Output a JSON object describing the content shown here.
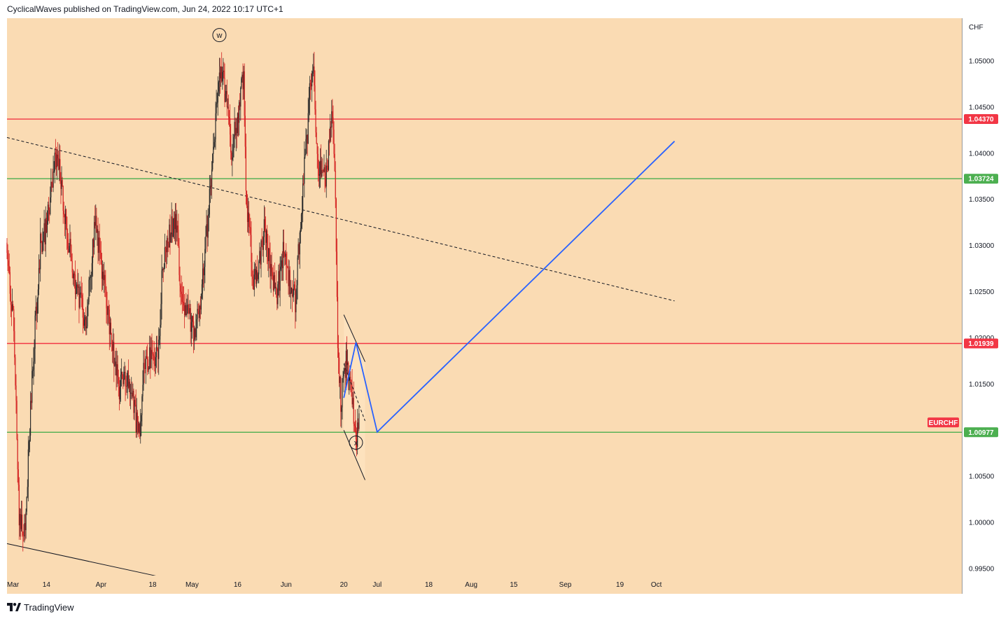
{
  "header": {
    "text": "CyclicalWaves published on TradingView.com, Jun 24, 2022 10:17 UTC+1"
  },
  "footer": {
    "brand": "TradingView"
  },
  "chart_data": {
    "type": "candlestick",
    "symbol": "EURCHF",
    "currency_label": "CHF",
    "ylim": [
      0.9935,
      1.0575
    ],
    "y_ticks": [
      "1.05000",
      "1.04500",
      "1.04000",
      "1.03500",
      "1.03000",
      "1.02500",
      "1.02000",
      "1.01500",
      "1.01000",
      "1.00500",
      "1.00000",
      "0.99500"
    ],
    "x_ticks": [
      "Mar",
      "14",
      "Apr",
      "18",
      "May",
      "16",
      "Jun",
      "20",
      "Jul",
      "18",
      "Aug",
      "15",
      "Sep",
      "19",
      "Oct"
    ],
    "colors": {
      "background": "#fadbb3",
      "up_candle": "#2b2b2b",
      "down_candle": "#d32020",
      "resistance_line": "#f23645",
      "support_line": "#4caf50",
      "projection_line": "#2962ff",
      "trend_line": "#131722",
      "tag_red": "#f23645",
      "tag_green": "#4caf50"
    },
    "horizontal_levels": [
      {
        "price": 1.0437,
        "label": "1.04370",
        "kind": "resistance"
      },
      {
        "price": 1.03724,
        "label": "1.03724",
        "kind": "support"
      },
      {
        "price": 1.01939,
        "label": "1.01939",
        "kind": "resistance"
      },
      {
        "price": 1.00977,
        "label": "1.00977",
        "kind": "support"
      }
    ],
    "symbol_tag": {
      "label": "EURCHF"
    },
    "wave_labels": [
      {
        "label": "W",
        "date": "May 10",
        "price": 1.0528
      },
      {
        "label": "X",
        "date": "Jun 24",
        "price": 1.00865
      }
    ],
    "trend_lines": [
      {
        "style": "dashed",
        "from": {
          "date": "Mar 1",
          "price": 1.0417
        },
        "to": {
          "date": "Oct 7",
          "price": 1.024
        }
      },
      {
        "style": "solid",
        "from": {
          "date": "Mar 1",
          "price": 0.9977
        },
        "to": {
          "date": "Apr 22",
          "price": 0.994
        }
      }
    ],
    "channel": {
      "upper": [
        {
          "date": "Jun 20",
          "price": 1.0225
        },
        {
          "date": "Jun 27",
          "price": 1.0174
        }
      ],
      "middle": [
        {
          "date": "Jun 20",
          "price": 1.0172
        },
        {
          "date": "Jun 27",
          "price": 1.011
        }
      ],
      "lower": [
        {
          "date": "Jun 20",
          "price": 1.01
        },
        {
          "date": "Jun 27",
          "price": 1.0046
        }
      ]
    },
    "projection_path": [
      {
        "date": "Jun 20",
        "price": 1.0135
      },
      {
        "date": "Jun 24",
        "price": 1.0195
      },
      {
        "date": "Jul 1",
        "price": 1.0098
      },
      {
        "date": "Oct 7",
        "price": 1.0413
      }
    ],
    "candle_anchors": [
      {
        "date": "Mar 1",
        "price": 1.0295
      },
      {
        "date": "Mar 3",
        "price": 1.022
      },
      {
        "date": "Mar 4",
        "price": 1.012
      },
      {
        "date": "Mar 5",
        "price": 1.001
      },
      {
        "date": "Mar 7",
        "price": 0.9985
      },
      {
        "date": "Mar 8",
        "price": 1.007
      },
      {
        "date": "Mar 10",
        "price": 1.02
      },
      {
        "date": "Mar 12",
        "price": 1.03
      },
      {
        "date": "Mar 14",
        "price": 1.032
      },
      {
        "date": "Mar 17",
        "price": 1.0395
      },
      {
        "date": "Mar 18",
        "price": 1.039
      },
      {
        "date": "Mar 21",
        "price": 1.031
      },
      {
        "date": "Mar 22",
        "price": 1.029
      },
      {
        "date": "Mar 24",
        "price": 1.025
      },
      {
        "date": "Mar 27",
        "price": 1.0215
      },
      {
        "date": "Mar 28",
        "price": 1.025
      },
      {
        "date": "Mar 30",
        "price": 1.033
      },
      {
        "date": "Apr 1",
        "price": 1.028
      },
      {
        "date": "Apr 4",
        "price": 1.021
      },
      {
        "date": "Apr 7",
        "price": 1.014
      },
      {
        "date": "Apr 8",
        "price": 1.016
      },
      {
        "date": "Apr 11",
        "price": 1.0145
      },
      {
        "date": "Apr 13",
        "price": 1.01
      },
      {
        "date": "Apr 14",
        "price": 1.01
      },
      {
        "date": "Apr 15",
        "price": 1.018
      },
      {
        "date": "Apr 18",
        "price": 1.0175
      },
      {
        "date": "Apr 20",
        "price": 1.0185
      },
      {
        "date": "Apr 21",
        "price": 1.027
      },
      {
        "date": "Apr 22",
        "price": 1.029
      },
      {
        "date": "Apr 25",
        "price": 1.033
      },
      {
        "date": "Apr 26",
        "price": 1.032
      },
      {
        "date": "Apr 27",
        "price": 1.026
      },
      {
        "date": "Apr 29",
        "price": 1.023
      },
      {
        "date": "May 2",
        "price": 1.0205
      },
      {
        "date": "May 4",
        "price": 1.025
      },
      {
        "date": "May 6",
        "price": 1.032
      },
      {
        "date": "May 8",
        "price": 1.04
      },
      {
        "date": "May 10",
        "price": 1.049
      },
      {
        "date": "May 11",
        "price": 1.048
      },
      {
        "date": "May 13",
        "price": 1.045
      },
      {
        "date": "May 14",
        "price": 1.04
      },
      {
        "date": "May 15",
        "price": 1.042
      },
      {
        "date": "May 17",
        "price": 1.046
      },
      {
        "date": "May 18",
        "price": 1.049
      },
      {
        "date": "May 19",
        "price": 1.033
      },
      {
        "date": "May 20",
        "price": 1.032
      },
      {
        "date": "May 21",
        "price": 1.026
      },
      {
        "date": "May 23",
        "price": 1.028
      },
      {
        "date": "May 25",
        "price": 1.032
      },
      {
        "date": "May 27",
        "price": 1.027
      },
      {
        "date": "May 29",
        "price": 1.025
      },
      {
        "date": "May 31",
        "price": 1.029
      },
      {
        "date": "Jun 2",
        "price": 1.026
      },
      {
        "date": "Jun 4",
        "price": 1.024
      },
      {
        "date": "Jun 5",
        "price": 1.029
      },
      {
        "date": "Jun 6",
        "price": 1.032
      },
      {
        "date": "Jun 7",
        "price": 1.039
      },
      {
        "date": "Jun 8",
        "price": 1.042
      },
      {
        "date": "Jun 9",
        "price": 1.048
      },
      {
        "date": "Jun 10",
        "price": 1.049
      },
      {
        "date": "Jun 11",
        "price": 1.041
      },
      {
        "date": "Jun 12",
        "price": 1.038
      },
      {
        "date": "Jun 13",
        "price": 1.0395
      },
      {
        "date": "Jun 14",
        "price": 1.0365
      },
      {
        "date": "Jun 15",
        "price": 1.04
      },
      {
        "date": "Jun 16",
        "price": 1.044
      },
      {
        "date": "Jun 17",
        "price": 1.0385
      },
      {
        "date": "Jun 18",
        "price": 1.02
      },
      {
        "date": "Jun 19",
        "price": 1.013
      },
      {
        "date": "Jun 20",
        "price": 1.0155
      },
      {
        "date": "Jun 21",
        "price": 1.018
      },
      {
        "date": "Jun 22",
        "price": 1.015
      },
      {
        "date": "Jun 23",
        "price": 1.0125
      },
      {
        "date": "Jun 24",
        "price": 1.009
      },
      {
        "date": "Jun 25",
        "price": 1.0105
      }
    ]
  }
}
